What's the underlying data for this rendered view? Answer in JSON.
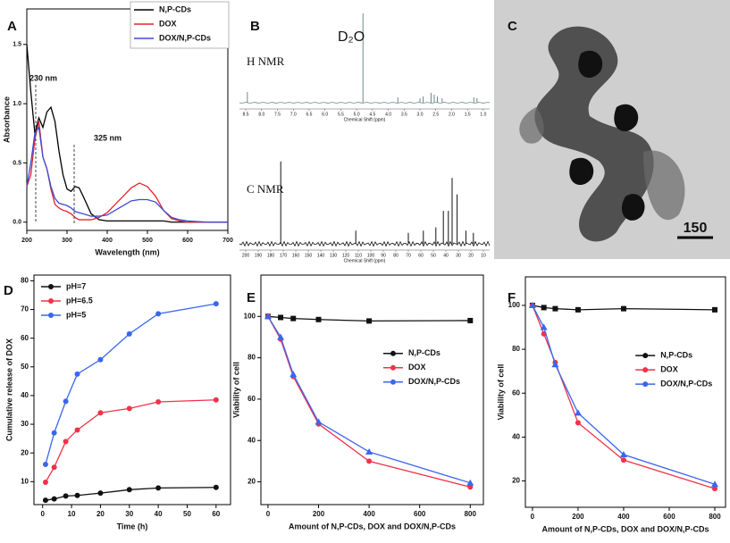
{
  "chart_data": [
    {
      "type": "line",
      "label": "A",
      "x_label": "Wavelength (nm)",
      "y_label": "Absorbance",
      "xlim": [
        200,
        700
      ],
      "ylim": [
        -0.07,
        1.8
      ],
      "xticks": [
        200,
        300,
        400,
        500,
        600,
        700
      ],
      "yticks": [
        {
          "value": 0,
          "label": "0.0"
        },
        {
          "value": 0.5,
          "label": "0.5"
        },
        {
          "value": 1,
          "label": "1.0"
        },
        {
          "value": 1.5,
          "label": "1.5"
        }
      ],
      "legend": "upper right",
      "annotations": [
        "230 nm",
        "325 nm"
      ],
      "x": [
        200,
        210,
        220,
        230,
        240,
        250,
        260,
        270,
        280,
        290,
        300,
        310,
        320,
        330,
        340,
        360,
        380,
        400,
        420,
        440,
        460,
        480,
        500,
        520,
        540,
        560,
        580,
        600,
        650,
        700
      ],
      "series": [
        {
          "name": "N,P-CDs",
          "color": "#000000",
          "values": [
            1.5,
            1.1,
            0.75,
            0.88,
            0.8,
            0.93,
            0.97,
            0.85,
            0.6,
            0.4,
            0.28,
            0.26,
            0.3,
            0.29,
            0.22,
            0.07,
            0.02,
            0.01,
            0.01,
            0.01,
            0.01,
            0.01,
            0.01,
            0.01,
            0.01,
            0,
            0,
            0,
            0,
            0
          ]
        },
        {
          "name": "DOX",
          "color": "#e8232a",
          "values": [
            0.3,
            0.4,
            0.7,
            0.85,
            0.55,
            0.45,
            0.28,
            0.15,
            0.12,
            0.1,
            0.09,
            0.07,
            0.04,
            0.02,
            0.02,
            0.02,
            0.04,
            0.08,
            0.15,
            0.22,
            0.29,
            0.33,
            0.3,
            0.22,
            0.1,
            0.03,
            0.01,
            0,
            0,
            0
          ]
        },
        {
          "name": "DOX/N,P-CDs",
          "color": "#3b4bd8",
          "values": [
            0.3,
            0.5,
            0.75,
            0.8,
            0.55,
            0.45,
            0.3,
            0.2,
            0.16,
            0.15,
            0.14,
            0.12,
            0.09,
            0.08,
            0.07,
            0.05,
            0.05,
            0.06,
            0.1,
            0.14,
            0.18,
            0.19,
            0.19,
            0.17,
            0.1,
            0.04,
            0.02,
            0.01,
            0,
            0
          ]
        }
      ]
    },
    {
      "type": "spectrum",
      "label": "B",
      "title": "H NMR",
      "x_label": "Chemical Shift (ppm)",
      "annotations": [
        "D₂O"
      ],
      "xlim": [
        8.7,
        0.8
      ],
      "ylim": [
        0,
        1
      ],
      "xticks": [
        8.5,
        {
          "value": 8,
          "label": "8.0"
        },
        7.5,
        {
          "value": 7,
          "label": "7.0"
        },
        6.5,
        {
          "value": 6,
          "label": "6.0"
        },
        5.5,
        {
          "value": 5,
          "label": "5.0"
        },
        4.5,
        {
          "value": 4,
          "label": "4.0"
        },
        3.5,
        {
          "value": 3,
          "label": "3.0"
        },
        2.5,
        {
          "value": 2,
          "label": "2.0"
        },
        1.5,
        {
          "value": 1,
          "label": "1.0"
        }
      ],
      "x": [
        8.45,
        4.8,
        3.7,
        3.0,
        2.9,
        2.65,
        2.55,
        2.45,
        2.3,
        1.3,
        1.2
      ],
      "values": [
        0.12,
        1.0,
        0.06,
        0.05,
        0.07,
        0.11,
        0.09,
        0.07,
        0.05,
        0.06,
        0.05
      ],
      "color": "#6a8a8a"
    },
    {
      "type": "spectrum",
      "title": "C NMR",
      "x_label": "Chemical Shift (ppm)",
      "xlim": [
        205,
        5
      ],
      "ylim": [
        0,
        1
      ],
      "xticks": [
        200,
        190,
        180,
        170,
        160,
        150,
        140,
        130,
        120,
        110,
        100,
        90,
        80,
        70,
        60,
        50,
        40,
        30,
        20,
        10
      ],
      "x": [
        172,
        112,
        70,
        58,
        48,
        42,
        38,
        35,
        31,
        24,
        18
      ],
      "values": [
        0.75,
        0.12,
        0.1,
        0.12,
        0.15,
        0.3,
        0.3,
        0.6,
        0.45,
        0.12,
        0.1
      ],
      "color": "#111111"
    },
    {
      "type": "image",
      "label": "C",
      "scale_bar": "150"
    },
    {
      "type": "line",
      "label": "D",
      "x_label": "Time (h)",
      "y_label": "Cumulative release of DOX",
      "xlim": [
        -3,
        65
      ],
      "ylim": [
        2,
        82
      ],
      "xticks": [
        0,
        10,
        20,
        30,
        40,
        50,
        60
      ],
      "yticks": [
        10,
        20,
        30,
        40,
        50,
        60,
        70,
        80
      ],
      "legend": "upper left",
      "x": [
        1,
        4,
        8,
        12,
        20,
        30,
        40,
        60
      ],
      "series": [
        {
          "name": "pH=7",
          "color": "#111111",
          "marker": "circle",
          "values": [
            3.5,
            4,
            5,
            5.2,
            6,
            7.2,
            7.8,
            8
          ]
        },
        {
          "name": "pH=6.5",
          "color": "#f0324a",
          "marker": "circle",
          "values": [
            9.8,
            15,
            24,
            28,
            34,
            35.5,
            37.8,
            38.5
          ]
        },
        {
          "name": "pH=5",
          "color": "#3a66ee",
          "marker": "circle",
          "values": [
            16,
            27,
            38,
            47.5,
            52.5,
            61.5,
            68.5,
            72
          ]
        }
      ]
    },
    {
      "type": "line",
      "label": "E",
      "x_label": "Amount of N,P-CDs, DOX and DOX/N,P-CDs",
      "y_label": "Viability of cell",
      "xlim": [
        -28,
        852
      ],
      "ylim": [
        9,
        120
      ],
      "xticks": [
        0,
        200,
        400,
        600,
        800
      ],
      "yticks": [
        20,
        40,
        60,
        80,
        100
      ],
      "legend": "center right",
      "x": [
        0,
        50,
        100,
        200,
        400,
        800
      ],
      "series": [
        {
          "name": "N,P-CDs",
          "color": "#111111",
          "marker": "square",
          "values": [
            100,
            99.5,
            99,
            98.5,
            97.8,
            98
          ]
        },
        {
          "name": "DOX",
          "color": "#f0324a",
          "marker": "circle",
          "values": [
            100,
            89,
            71,
            48,
            30,
            17.5
          ]
        },
        {
          "name": "DOX/N,P-CDs",
          "color": "#3a66ee",
          "marker": "triangle",
          "values": [
            100,
            90,
            72,
            49,
            34.5,
            19.5
          ]
        }
      ]
    },
    {
      "type": "line",
      "label": "F",
      "x_label": "Amount of N,P-CDs, DOX and DOX/N,P-CDs",
      "y_label": "Viability of cell",
      "xlim": [
        -31,
        847
      ],
      "ylim": [
        8,
        113
      ],
      "xticks": [
        0,
        200,
        400,
        600,
        800
      ],
      "yticks": [
        20,
        40,
        60,
        80,
        100
      ],
      "legend": "center right",
      "x": [
        0,
        50,
        100,
        200,
        400,
        800
      ],
      "series": [
        {
          "name": "N,P-CDs",
          "color": "#111111",
          "marker": "square",
          "values": [
            100,
            99,
            98.5,
            98,
            98.5,
            98
          ]
        },
        {
          "name": "DOX",
          "color": "#f0324a",
          "marker": "circle",
          "values": [
            100,
            87,
            74,
            46.5,
            29.5,
            16.5
          ]
        },
        {
          "name": "DOX/N,P-CDs",
          "color": "#3a66ee",
          "marker": "triangle",
          "values": [
            100,
            90,
            73,
            51,
            32,
            18.5
          ]
        }
      ]
    }
  ]
}
